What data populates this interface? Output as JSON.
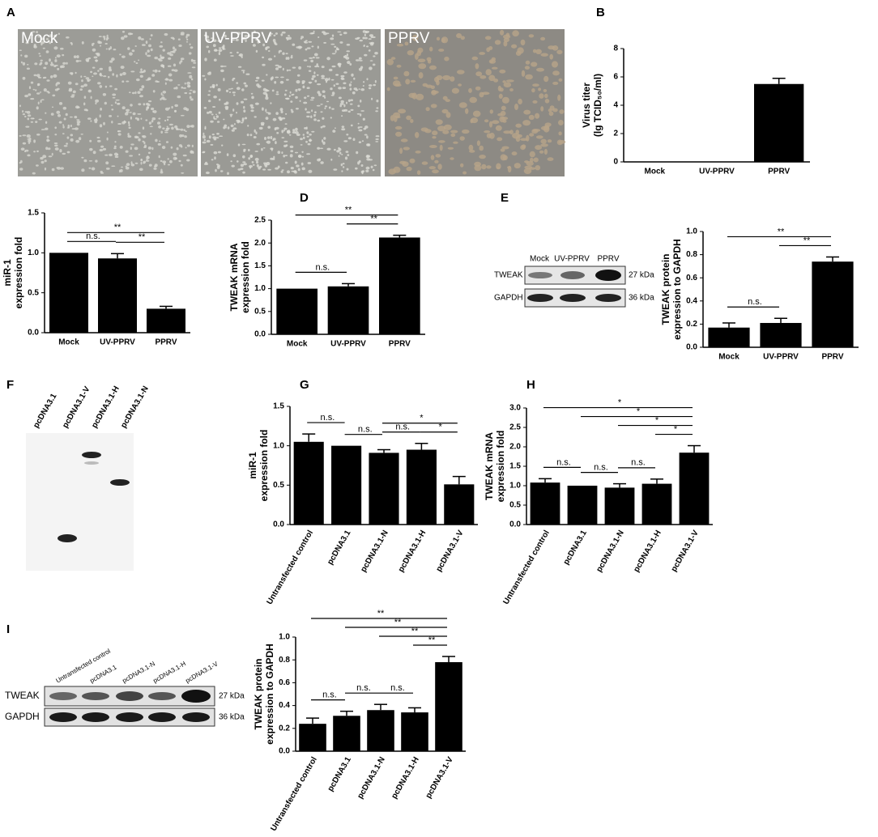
{
  "panels": {
    "A": {
      "label": "A",
      "images": [
        "Mock",
        "UV-PPRV",
        "PPRV"
      ]
    },
    "E": {
      "label": "E",
      "lanes": [
        "Mock",
        "UV-PPRV",
        "PPRV"
      ],
      "rows": [
        "TWEAK",
        "GAPDH"
      ],
      "sizes": [
        "27 kDa",
        "36 kDa"
      ]
    },
    "F": {
      "label": "F",
      "lanes": [
        "pcDNA3.1",
        "pcDNA3.1-V",
        "pcDNA3.1-H",
        "pcDNA3.1-N"
      ]
    },
    "I": {
      "label": "I",
      "lanes": [
        "Untransfected control",
        "pcDNA3.1",
        "pcDNA3.1-N",
        "pcDNA3.1-H",
        "pcDNA3.1-V"
      ],
      "rows": [
        "TWEAK",
        "GAPDH"
      ],
      "sizes": [
        "27 kDa",
        "36 kDa"
      ]
    }
  },
  "chart_data": [
    {
      "type": "bar",
      "panel": "B",
      "ylabel": [
        "Virus titer",
        "(lg TCID₅₀/ml)"
      ],
      "categories": [
        "Mock",
        "UV-PPRV",
        "PPRV"
      ],
      "values": [
        0,
        0,
        5.5
      ],
      "errors": [
        null,
        null,
        0.4
      ],
      "color": "#000000",
      "ylim": [
        0,
        8
      ],
      "yticks": [
        0,
        2,
        4,
        6,
        8
      ],
      "annotations": []
    },
    {
      "type": "bar",
      "ylabel": [
        "miR-1",
        "expression fold"
      ],
      "categories": [
        "Mock",
        "UV-PPRV",
        "PPRV"
      ],
      "values": [
        1.0,
        0.93,
        0.3
      ],
      "errors": [
        null,
        0.06,
        0.03
      ],
      "color": "#000000",
      "ylim": [
        0,
        1.5
      ],
      "yticks": [
        {
          "value": 0,
          "label": "0.0"
        },
        {
          "value": 0.5,
          "label": "0.5"
        },
        {
          "value": 1,
          "label": "1.0"
        },
        {
          "value": 1.5,
          "label": "1.5"
        }
      ],
      "annotations": [
        {
          "label": "n.s.",
          "groups": [
            0,
            1
          ]
        },
        {
          "label": "**",
          "groups": [
            1,
            2
          ]
        },
        {
          "label": "**",
          "groups": [
            0,
            2
          ]
        }
      ]
    },
    {
      "type": "bar",
      "panel": "D",
      "ylabel": [
        "TWEAK mRNA",
        "expression fold"
      ],
      "categories": [
        "Mock",
        "UV-PPRV",
        "PPRV"
      ],
      "values": [
        1.0,
        1.05,
        2.12
      ],
      "errors": [
        null,
        0.06,
        0.05
      ],
      "color": "#000000",
      "ylim": [
        0,
        2.5
      ],
      "yticks": [
        {
          "value": 0,
          "label": "0.0"
        },
        {
          "value": 0.5,
          "label": "0.5"
        },
        {
          "value": 1,
          "label": "1.0"
        },
        {
          "value": 1.5,
          "label": "1.5"
        },
        {
          "value": 2,
          "label": "2.0"
        },
        {
          "value": 2.5,
          "label": "2.5"
        }
      ],
      "annotations": [
        {
          "label": "n.s.",
          "groups": [
            0,
            1
          ]
        },
        {
          "label": "**",
          "groups": [
            1,
            2
          ]
        },
        {
          "label": "**",
          "groups": [
            0,
            2
          ]
        }
      ]
    },
    {
      "type": "bar",
      "ylabel": [
        "TWEAK protein",
        "expression to GAPDH"
      ],
      "categories": [
        "Mock",
        "UV-PPRV",
        "PPRV"
      ],
      "values": [
        0.17,
        0.21,
        0.74
      ],
      "errors": [
        0.04,
        0.04,
        0.04
      ],
      "color": "#000000",
      "ylim": [
        0,
        1
      ],
      "yticks": [
        {
          "value": 0,
          "label": "0.0"
        },
        {
          "value": 0.2,
          "label": "0.2"
        },
        {
          "value": 0.4,
          "label": "0.4"
        },
        {
          "value": 0.6,
          "label": "0.6"
        },
        {
          "value": 0.8,
          "label": "0.8"
        },
        {
          "value": 1,
          "label": "1.0"
        }
      ],
      "annotations": [
        {
          "label": "n.s.",
          "groups": [
            0,
            1
          ]
        },
        {
          "label": "**",
          "groups": [
            1,
            2
          ]
        },
        {
          "label": "**",
          "groups": [
            0,
            2
          ]
        }
      ]
    },
    {
      "type": "bar",
      "panel": "G",
      "ylabel": [
        "miR-1",
        "expression fold"
      ],
      "categories": [
        "Untransfected control",
        "pcDNA3.1",
        "pcDNA3.1-N",
        "pcDNA3.1-H",
        "pcDNA3.1-V"
      ],
      "values": [
        1.05,
        1.0,
        0.91,
        0.95,
        0.51
      ],
      "errors": [
        0.1,
        null,
        0.04,
        0.08,
        0.1
      ],
      "color": "#000000",
      "ylim": [
        0,
        1.5
      ],
      "yticks": [
        {
          "value": 0,
          "label": "0.0"
        },
        {
          "value": 0.5,
          "label": "0.5"
        },
        {
          "value": 1,
          "label": "1.0"
        },
        {
          "value": 1.5,
          "label": "1.5"
        }
      ],
      "annotations": [
        {
          "label": "n.s.",
          "groups": [
            0,
            1
          ]
        },
        {
          "label": "n.s.",
          "groups": [
            1,
            2
          ]
        },
        {
          "label": "n.s.",
          "groups": [
            2,
            3
          ]
        },
        {
          "label": "*",
          "groups": [
            3,
            4
          ]
        },
        {
          "label": "*",
          "groups": [
            2,
            4
          ]
        }
      ]
    },
    {
      "type": "bar",
      "panel": "H",
      "ylabel": [
        "TWEAK mRNA",
        "expression fold"
      ],
      "categories": [
        "Untransfected control",
        "pcDNA3.1",
        "pcDNA3.1-N",
        "pcDNA3.1-H",
        "pcDNA3.1-V"
      ],
      "values": [
        1.08,
        1.0,
        0.95,
        1.05,
        1.85
      ],
      "errors": [
        0.1,
        null,
        0.1,
        0.12,
        0.18
      ],
      "color": "#000000",
      "ylim": [
        0,
        3
      ],
      "yticks": [
        {
          "value": 0,
          "label": "0.0"
        },
        {
          "value": 0.5,
          "label": "0.5"
        },
        {
          "value": 1,
          "label": "1.0"
        },
        {
          "value": 1.5,
          "label": "1.5"
        },
        {
          "value": 2,
          "label": "2.0"
        },
        {
          "value": 2.5,
          "label": "2.5"
        },
        {
          "value": 3,
          "label": "3.0"
        }
      ],
      "annotations": [
        {
          "label": "n.s.",
          "groups": [
            0,
            1
          ]
        },
        {
          "label": "n.s.",
          "groups": [
            1,
            2
          ]
        },
        {
          "label": "n.s.",
          "groups": [
            2,
            3
          ]
        },
        {
          "label": "*",
          "groups": [
            3,
            4
          ]
        },
        {
          "label": "*",
          "groups": [
            2,
            4
          ]
        },
        {
          "label": "*",
          "groups": [
            1,
            4
          ]
        },
        {
          "label": "*",
          "groups": [
            0,
            4
          ]
        }
      ]
    },
    {
      "type": "bar",
      "ylabel": [
        "TWEAK protein",
        "expression to GAPDH"
      ],
      "categories": [
        "Untransfected control",
        "pcDNA3.1",
        "pcDNA3.1-N",
        "pcDNA3.1-H",
        "pcDNA3.1-V"
      ],
      "values": [
        0.24,
        0.31,
        0.36,
        0.34,
        0.78
      ],
      "errors": [
        0.05,
        0.04,
        0.05,
        0.04,
        0.05
      ],
      "color": "#000000",
      "ylim": [
        0,
        1
      ],
      "yticks": [
        {
          "value": 0,
          "label": "0.0"
        },
        {
          "value": 0.2,
          "label": "0.2"
        },
        {
          "value": 0.4,
          "label": "0.4"
        },
        {
          "value": 0.6,
          "label": "0.6"
        },
        {
          "value": 0.8,
          "label": "0.8"
        },
        {
          "value": 1,
          "label": "1.0"
        }
      ],
      "annotations": [
        {
          "label": "n.s.",
          "groups": [
            0,
            1
          ]
        },
        {
          "label": "n.s.",
          "groups": [
            1,
            2
          ]
        },
        {
          "label": "n.s.",
          "groups": [
            2,
            3
          ]
        },
        {
          "label": "**",
          "groups": [
            3,
            4
          ]
        },
        {
          "label": "**",
          "groups": [
            2,
            4
          ]
        },
        {
          "label": "**",
          "groups": [
            1,
            4
          ]
        },
        {
          "label": "**",
          "groups": [
            0,
            4
          ]
        }
      ]
    }
  ]
}
